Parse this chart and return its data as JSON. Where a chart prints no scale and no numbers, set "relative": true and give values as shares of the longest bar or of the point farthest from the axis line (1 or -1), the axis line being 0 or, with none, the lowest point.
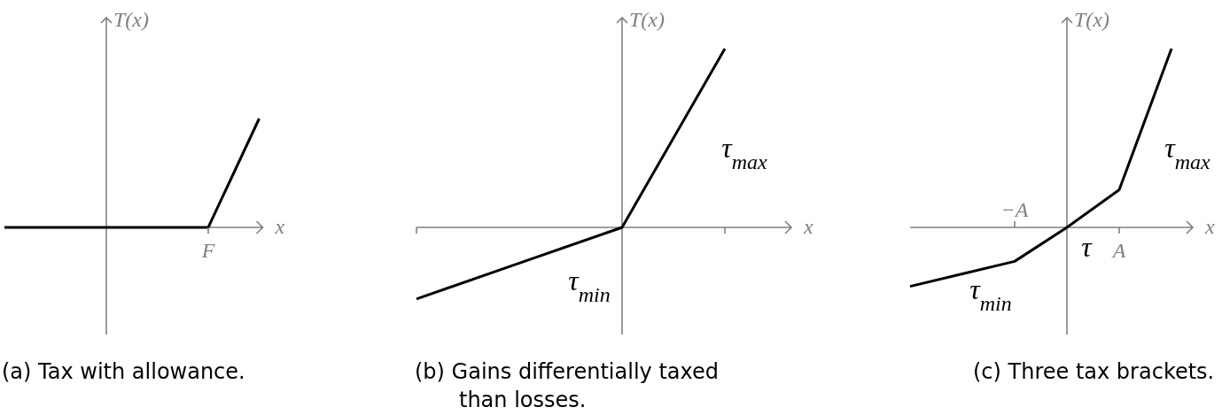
{
  "chart_data": [
    {
      "type": "line",
      "relative": true,
      "title": "(a)  Tax with allowance.",
      "xlabel": "x",
      "ylabel": "T(x)",
      "categories": [
        null,
        null,
        null,
        null,
        null,
        null
      ],
      "values": [
        0,
        0,
        0,
        0,
        0,
        1
      ],
      "color": "#000000",
      "marker": "none",
      "line_style": "solid",
      "annotations": [
        "F"
      ]
    },
    {
      "type": "line",
      "relative": true,
      "title": "(b)  Gains differentially taxed than losses.",
      "xlabel": "x",
      "ylabel": "T(x)",
      "categories": [
        null,
        null,
        null,
        null
      ],
      "values": [
        -0.4,
        -0.2,
        0,
        1
      ],
      "color": "#000000",
      "marker": "none",
      "line_style": "solid",
      "annotations": [
        "τ$_{max}$",
        "τ$_{min}$"
      ]
    },
    {
      "type": "line",
      "relative": true,
      "title": "(c)  Three tax brackets.",
      "xlabel": "x",
      "ylabel": "T(x)",
      "categories": [
        null,
        null,
        "−A",
        null,
        "A",
        null
      ],
      "values": [
        -0.33,
        -0.26,
        -0.19,
        0,
        0.21,
        1
      ],
      "color": "#000000",
      "marker": "none",
      "line_style": "solid",
      "annotations": [
        "τ$_{max}$",
        "τ",
        "τ$_{min}$"
      ]
    }
  ]
}
